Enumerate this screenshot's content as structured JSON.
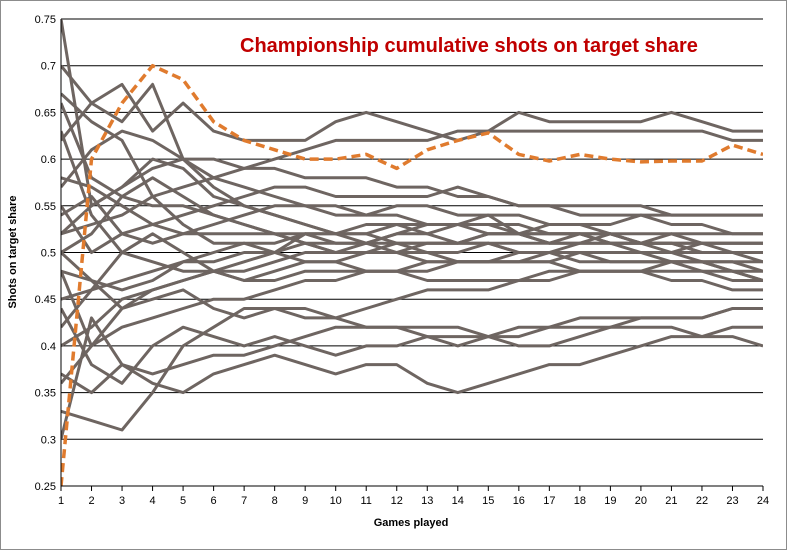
{
  "chart_data": {
    "type": "line",
    "title": "Championship cumulative shots on target share",
    "xlabel": "Games played",
    "ylabel": "Shots on target share",
    "x": [
      1,
      2,
      3,
      4,
      5,
      6,
      7,
      8,
      9,
      10,
      11,
      12,
      13,
      14,
      15,
      16,
      17,
      18,
      19,
      20,
      21,
      22,
      23,
      24
    ],
    "xlim": [
      1,
      24
    ],
    "ylim": [
      0.25,
      0.75
    ],
    "yticks": [
      0.25,
      0.3,
      0.35,
      0.4,
      0.45,
      0.5,
      0.55,
      0.6,
      0.65,
      0.7,
      0.75
    ],
    "ytick_labels": [
      "0.25",
      "0.3",
      "0.35",
      "0.4",
      "0.45",
      "0.5",
      "0.55",
      "0.6",
      "0.65",
      "0.7",
      "0.75"
    ],
    "grid": "horizontal",
    "colors": {
      "team_lines": "#6e6561",
      "highlight": "#e07b2e",
      "title": "#c00000"
    },
    "highlight_series": [
      0.25,
      0.6,
      0.66,
      0.7,
      0.685,
      0.64,
      0.62,
      0.61,
      0.6,
      0.6,
      0.605,
      0.59,
      0.61,
      0.62,
      0.628,
      0.605,
      0.598,
      0.605,
      0.6,
      0.597,
      0.598,
      0.598,
      0.615,
      0.605
    ],
    "series": [
      {
        "values": [
          0.75,
          0.55,
          0.57,
          0.6,
          0.59,
          0.56,
          0.55,
          0.54,
          0.53,
          0.52,
          0.51,
          0.51,
          0.5,
          0.5,
          0.51,
          0.5,
          0.5,
          0.5,
          0.5,
          0.5,
          0.5,
          0.49,
          0.49,
          0.48
        ]
      },
      {
        "values": [
          0.67,
          0.64,
          0.62,
          0.56,
          0.53,
          0.51,
          0.51,
          0.5,
          0.52,
          0.52,
          0.53,
          0.53,
          0.52,
          0.53,
          0.54,
          0.52,
          0.52,
          0.52,
          0.51,
          0.51,
          0.5,
          0.51,
          0.51,
          0.51
        ]
      },
      {
        "values": [
          0.33,
          0.32,
          0.31,
          0.35,
          0.4,
          0.42,
          0.44,
          0.44,
          0.44,
          0.43,
          0.42,
          0.42,
          0.41,
          0.41,
          0.41,
          0.42,
          0.42,
          0.43,
          0.43,
          0.43,
          0.43,
          0.43,
          0.44,
          0.44
        ]
      },
      {
        "values": [
          0.5,
          0.47,
          0.44,
          0.46,
          0.47,
          0.48,
          0.49,
          0.5,
          0.51,
          0.5,
          0.51,
          0.52,
          0.53,
          0.53,
          0.53,
          0.52,
          0.51,
          0.51,
          0.52,
          0.51,
          0.51,
          0.5,
          0.5,
          0.5
        ]
      },
      {
        "values": [
          0.42,
          0.46,
          0.5,
          0.52,
          0.5,
          0.48,
          0.47,
          0.48,
          0.49,
          0.49,
          0.5,
          0.5,
          0.51,
          0.51,
          0.52,
          0.52,
          0.52,
          0.52,
          0.52,
          0.51,
          0.51,
          0.51,
          0.5,
          0.5
        ]
      },
      {
        "values": [
          0.58,
          0.57,
          0.55,
          0.53,
          0.52,
          0.52,
          0.52,
          0.52,
          0.51,
          0.51,
          0.51,
          0.5,
          0.5,
          0.49,
          0.49,
          0.49,
          0.49,
          0.5,
          0.49,
          0.49,
          0.49,
          0.48,
          0.48,
          0.47
        ]
      },
      {
        "values": [
          0.4,
          0.42,
          0.45,
          0.46,
          0.47,
          0.48,
          0.48,
          0.49,
          0.5,
          0.5,
          0.5,
          0.51,
          0.51,
          0.51,
          0.52,
          0.52,
          0.53,
          0.53,
          0.53,
          0.54,
          0.54,
          0.54,
          0.54,
          0.54
        ]
      },
      {
        "values": [
          0.62,
          0.66,
          0.68,
          0.63,
          0.66,
          0.63,
          0.62,
          0.62,
          0.62,
          0.64,
          0.65,
          0.64,
          0.63,
          0.62,
          0.63,
          0.65,
          0.64,
          0.64,
          0.64,
          0.64,
          0.65,
          0.64,
          0.63,
          0.63
        ]
      },
      {
        "values": [
          0.66,
          0.58,
          0.56,
          0.55,
          0.55,
          0.54,
          0.53,
          0.52,
          0.52,
          0.51,
          0.51,
          0.52,
          0.52,
          0.51,
          0.51,
          0.5,
          0.5,
          0.51,
          0.51,
          0.5,
          0.49,
          0.49,
          0.48,
          0.47
        ]
      },
      {
        "values": [
          0.3,
          0.43,
          0.38,
          0.37,
          0.38,
          0.39,
          0.39,
          0.4,
          0.41,
          0.42,
          0.42,
          0.42,
          0.42,
          0.42,
          0.41,
          0.4,
          0.4,
          0.41,
          0.42,
          0.42,
          0.42,
          0.41,
          0.42,
          0.42
        ]
      },
      {
        "values": [
          0.7,
          0.66,
          0.64,
          0.68,
          0.6,
          0.57,
          0.55,
          0.54,
          0.53,
          0.52,
          0.52,
          0.53,
          0.53,
          0.53,
          0.53,
          0.53,
          0.52,
          0.52,
          0.51,
          0.51,
          0.51,
          0.5,
          0.5,
          0.49
        ]
      },
      {
        "values": [
          0.48,
          0.4,
          0.44,
          0.45,
          0.46,
          0.44,
          0.43,
          0.44,
          0.43,
          0.43,
          0.44,
          0.45,
          0.46,
          0.46,
          0.46,
          0.47,
          0.47,
          0.48,
          0.48,
          0.48,
          0.48,
          0.48,
          0.47,
          0.47
        ]
      },
      {
        "values": [
          0.55,
          0.5,
          0.52,
          0.53,
          0.54,
          0.55,
          0.56,
          0.57,
          0.57,
          0.56,
          0.56,
          0.56,
          0.56,
          0.57,
          0.56,
          0.55,
          0.55,
          0.55,
          0.55,
          0.55,
          0.54,
          0.54,
          0.54,
          0.54
        ]
      },
      {
        "values": [
          0.37,
          0.35,
          0.38,
          0.36,
          0.35,
          0.37,
          0.38,
          0.39,
          0.38,
          0.37,
          0.38,
          0.38,
          0.36,
          0.35,
          0.36,
          0.37,
          0.38,
          0.38,
          0.39,
          0.4,
          0.41,
          0.41,
          0.41,
          0.4
        ]
      },
      {
        "values": [
          0.52,
          0.55,
          0.57,
          0.59,
          0.6,
          0.6,
          0.59,
          0.59,
          0.58,
          0.58,
          0.58,
          0.57,
          0.57,
          0.56,
          0.56,
          0.55,
          0.55,
          0.54,
          0.54,
          0.54,
          0.53,
          0.53,
          0.52,
          0.52
        ]
      },
      {
        "values": [
          0.45,
          0.46,
          0.47,
          0.48,
          0.49,
          0.49,
          0.5,
          0.5,
          0.49,
          0.49,
          0.48,
          0.48,
          0.48,
          0.49,
          0.49,
          0.49,
          0.49,
          0.48,
          0.48,
          0.48,
          0.47,
          0.47,
          0.46,
          0.46
        ]
      },
      {
        "values": [
          0.44,
          0.38,
          0.36,
          0.4,
          0.42,
          0.41,
          0.4,
          0.41,
          0.4,
          0.39,
          0.4,
          0.4,
          0.41,
          0.4,
          0.41,
          0.41,
          0.42,
          0.42,
          0.42,
          0.43,
          0.43,
          0.43,
          0.44,
          0.44
        ]
      },
      {
        "values": [
          0.52,
          0.53,
          0.54,
          0.56,
          0.57,
          0.58,
          0.59,
          0.6,
          0.61,
          0.62,
          0.62,
          0.62,
          0.62,
          0.63,
          0.63,
          0.63,
          0.63,
          0.63,
          0.63,
          0.63,
          0.63,
          0.63,
          0.62,
          0.62
        ]
      },
      {
        "values": [
          0.63,
          0.54,
          0.5,
          0.49,
          0.48,
          0.48,
          0.47,
          0.47,
          0.48,
          0.48,
          0.48,
          0.48,
          0.47,
          0.47,
          0.47,
          0.47,
          0.48,
          0.48,
          0.48,
          0.48,
          0.49,
          0.49,
          0.48,
          0.48
        ]
      },
      {
        "values": [
          0.48,
          0.47,
          0.46,
          0.47,
          0.49,
          0.5,
          0.51,
          0.51,
          0.52,
          0.52,
          0.52,
          0.51,
          0.51,
          0.51,
          0.51,
          0.51,
          0.51,
          0.52,
          0.52,
          0.51,
          0.52,
          0.52,
          0.52,
          0.52
        ]
      },
      {
        "values": [
          0.54,
          0.56,
          0.52,
          0.51,
          0.52,
          0.53,
          0.54,
          0.55,
          0.55,
          0.54,
          0.54,
          0.55,
          0.55,
          0.54,
          0.54,
          0.54,
          0.53,
          0.53,
          0.52,
          0.52,
          0.52,
          0.51,
          0.51,
          0.51
        ]
      },
      {
        "values": [
          0.5,
          0.52,
          0.56,
          0.58,
          0.56,
          0.54,
          0.53,
          0.52,
          0.51,
          0.5,
          0.5,
          0.5,
          0.49,
          0.49,
          0.49,
          0.5,
          0.5,
          0.49,
          0.49,
          0.49,
          0.49,
          0.49,
          0.49,
          0.49
        ]
      },
      {
        "values": [
          0.36,
          0.4,
          0.42,
          0.43,
          0.44,
          0.45,
          0.45,
          0.46,
          0.47,
          0.47,
          0.48,
          0.48,
          0.49,
          0.49,
          0.49,
          0.49,
          0.5,
          0.5,
          0.5,
          0.5,
          0.5,
          0.5,
          0.5,
          0.5
        ]
      },
      {
        "values": [
          0.57,
          0.61,
          0.63,
          0.62,
          0.6,
          0.58,
          0.57,
          0.56,
          0.55,
          0.55,
          0.54,
          0.54,
          0.53,
          0.53,
          0.52,
          0.52,
          0.51,
          0.51,
          0.51,
          0.51,
          0.51,
          0.51,
          0.51,
          0.51
        ]
      }
    ]
  }
}
